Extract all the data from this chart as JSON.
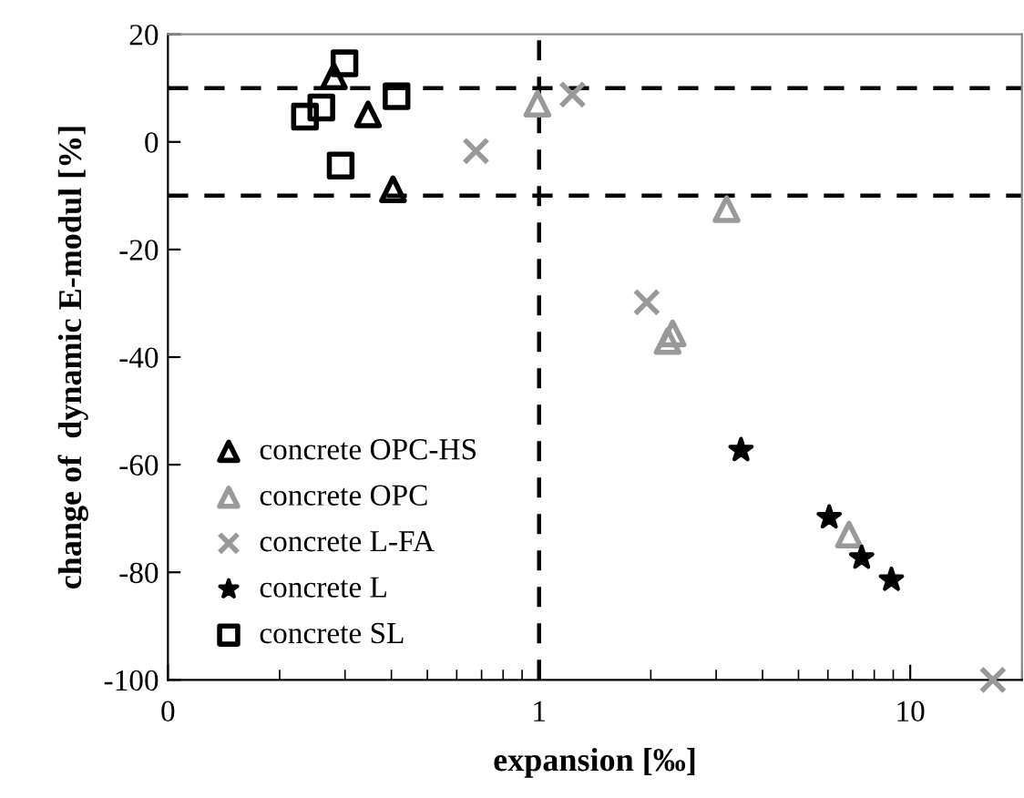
{
  "chart_data": {
    "type": "scatter",
    "xlabel": "expansion [‰]",
    "ylabel": "change of  dynamic E-modul [%]",
    "log": "x",
    "xlim": [
      0.1,
      20
    ],
    "xticks": [
      {
        "value": 0.1,
        "label": "0"
      },
      1,
      10
    ],
    "ylim": [
      -100,
      20
    ],
    "yticks": [
      -100,
      -80,
      -60,
      -40,
      -20,
      0,
      20
    ],
    "grid": false,
    "legend": "bottom left",
    "ref_lines": [
      {
        "axis": "y",
        "value": 10,
        "color": "#000000",
        "line_style": "dashed"
      },
      {
        "axis": "y",
        "value": -10,
        "color": "#000000",
        "line_style": "dashed"
      },
      {
        "axis": "x",
        "value": 1,
        "color": "#000000",
        "line_style": "dashed"
      }
    ],
    "series": [
      {
        "name": "concrete OPC-HS",
        "color": "#000000",
        "marker": "triangle",
        "x": [
          0.28,
          0.346,
          0.404
        ],
        "values": [
          12.2,
          5.1,
          -8.8
        ]
      },
      {
        "name": "concrete OPC",
        "color": "#999999",
        "marker": "triangle",
        "x": [
          0.99,
          3.2,
          2.29,
          2.22,
          6.84
        ],
        "values": [
          7.1,
          -12.5,
          -35.6,
          -37,
          -73
        ]
      },
      {
        "name": "concrete L-FA",
        "color": "#999999",
        "marker": "cross",
        "x": [
          0.676,
          1.23,
          1.95,
          16.7
        ],
        "values": [
          -1.7,
          8.8,
          -29.8,
          -100
        ]
      },
      {
        "name": "concrete L",
        "color": "#000000",
        "marker": "star",
        "x": [
          3.5,
          6.05,
          7.4,
          8.9
        ],
        "values": [
          -57.3,
          -69.8,
          -77.3,
          -81.4
        ]
      },
      {
        "name": "concrete SL",
        "color": "#000000",
        "marker": "square",
        "x": [
          0.234,
          0.259,
          0.299,
          0.292,
          0.413
        ],
        "values": [
          4.7,
          6.4,
          14.6,
          -4.4,
          8.5
        ]
      }
    ]
  }
}
